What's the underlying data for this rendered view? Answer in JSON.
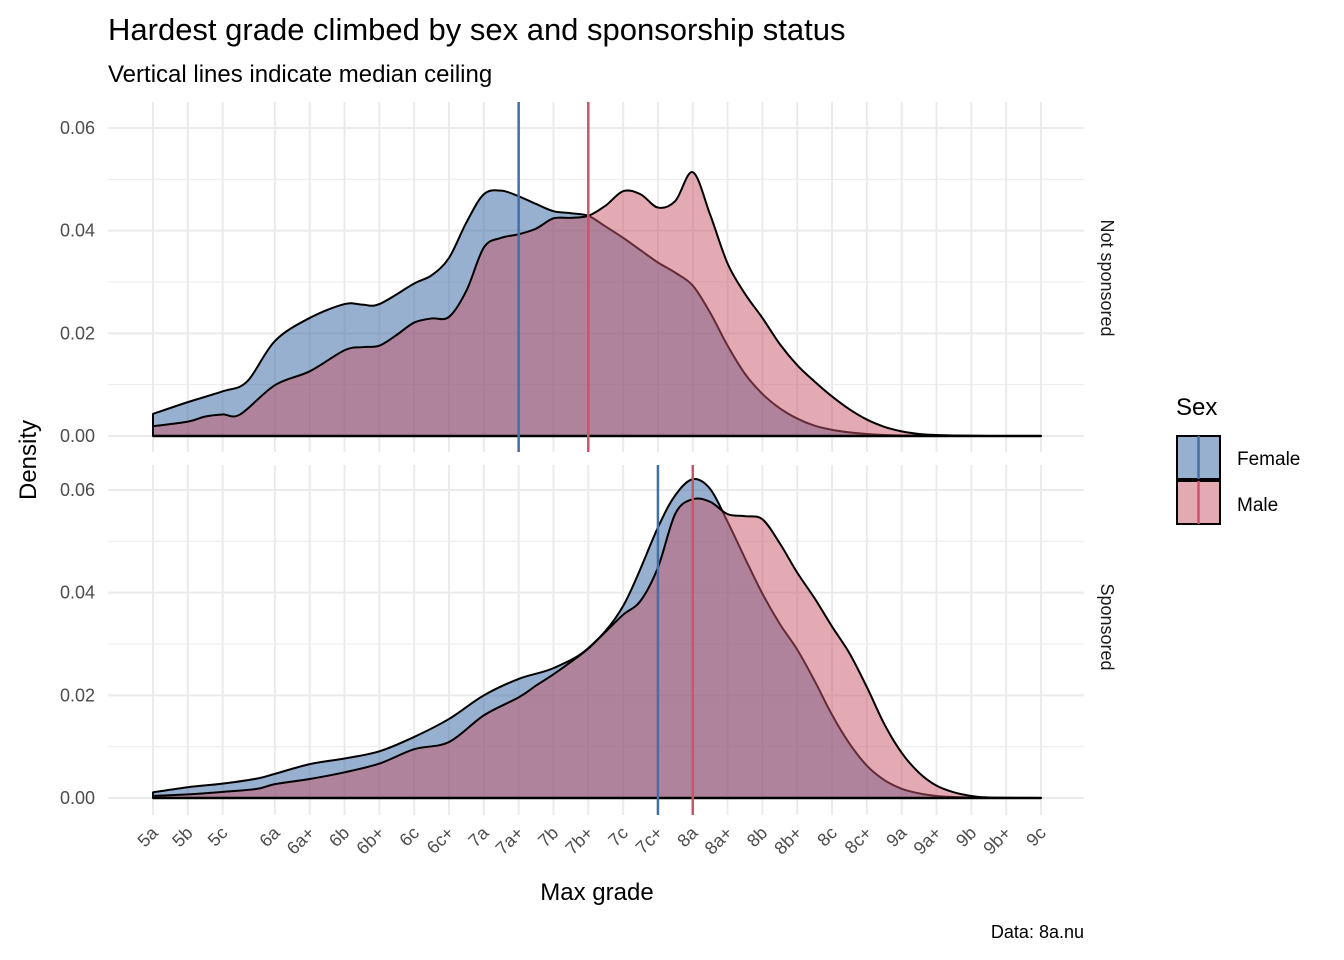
{
  "chart_data": {
    "type": "area",
    "title": "Hardest grade climbed by sex and sponsorship status",
    "subtitle": "Vertical lines indicate median ceiling",
    "xlabel": "Max grade",
    "ylabel": "Density",
    "caption": "Data: 8a.nu",
    "categories": [
      "5a",
      "5b",
      "5c",
      "6a",
      "6a+",
      "6b",
      "6b+",
      "6c",
      "6c+",
      "7a",
      "7a+",
      "7b",
      "7b+",
      "7c",
      "7c+",
      "8a",
      "8a+",
      "8b",
      "8b+",
      "8c",
      "8c+",
      "9a",
      "9a+",
      "9b",
      "9b+",
      "9c"
    ],
    "category_positions": [
      1,
      2,
      3,
      4.5,
      5.5,
      6.5,
      7.5,
      8.5,
      9.5,
      10.5,
      11.5,
      12.5,
      13.5,
      14.5,
      15.5,
      16.5,
      17.5,
      18.5,
      19.5,
      20.5,
      21.5,
      22.5,
      23.5,
      24.5,
      25.5,
      26.5
    ],
    "ylim": [
      0,
      0.065
    ],
    "yticks": [
      0,
      0.02,
      0.04,
      0.06
    ],
    "ytick_labels": [
      "0.00",
      "0.02",
      "0.04",
      "0.06"
    ],
    "grid": true,
    "legend": {
      "title": "Sex",
      "placement": "right",
      "entries": [
        {
          "name": "Female",
          "color": "#4470A8"
        },
        {
          "name": "Male",
          "color": "#C8566A"
        }
      ]
    },
    "panels": [
      {
        "label": "Not sponsored",
        "medians": {
          "Female": 11.5,
          "Male": 13.5
        },
        "series": [
          {
            "name": "Female",
            "x": [
              1,
              2,
              3,
              3.7,
              4.5,
              5.5,
              6.5,
              7,
              7.5,
              8.5,
              9,
              9.5,
              10,
              10.5,
              11,
              11.5,
              12,
              12.5,
              13,
              13.5,
              14,
              14.5,
              15,
              15.5,
              16,
              16.5,
              17,
              17.5,
              18,
              18.5,
              19,
              19.5,
              20,
              20.5,
              21,
              21.5,
              22,
              22.5,
              23,
              23.5,
              24,
              25,
              26.5
            ],
            "y": [
              0.0043,
              0.0066,
              0.0087,
              0.0106,
              0.0185,
              0.023,
              0.0257,
              0.0256,
              0.0257,
              0.0297,
              0.0313,
              0.0347,
              0.0416,
              0.0471,
              0.0478,
              0.0467,
              0.0452,
              0.0438,
              0.0434,
              0.0429,
              0.0408,
              0.0386,
              0.0362,
              0.0338,
              0.0318,
              0.0293,
              0.024,
              0.0176,
              0.0121,
              0.0082,
              0.0054,
              0.0034,
              0.002,
              0.0012,
              0.0007,
              0.0004,
              0.0002,
              0.0001,
              0.0001,
              0,
              0,
              0,
              0
            ]
          },
          {
            "name": "Male",
            "x": [
              1,
              2,
              2.5,
              3,
              3.5,
              4.5,
              5.5,
              6.5,
              7,
              7.5,
              8,
              8.5,
              9,
              9.5,
              10,
              10.5,
              11,
              11.5,
              12,
              12.5,
              13,
              13.5,
              14,
              14.5,
              15,
              15.5,
              16,
              16.5,
              17,
              17.5,
              18,
              18.5,
              19,
              19.5,
              20,
              20.5,
              21,
              21.5,
              22,
              22.5,
              23,
              23.5,
              24,
              25,
              26.5
            ],
            "y": [
              0.0019,
              0.0028,
              0.0038,
              0.0042,
              0.0042,
              0.0099,
              0.0126,
              0.0167,
              0.0173,
              0.0176,
              0.0197,
              0.0221,
              0.0229,
              0.0232,
              0.0283,
              0.0367,
              0.0386,
              0.0393,
              0.0404,
              0.0424,
              0.0425,
              0.0429,
              0.0449,
              0.0477,
              0.0471,
              0.0445,
              0.0458,
              0.0514,
              0.0431,
              0.0336,
              0.0277,
              0.023,
              0.0179,
              0.0138,
              0.0106,
              0.0077,
              0.0052,
              0.0032,
              0.0018,
              0.0009,
              0.0004,
              0.0002,
              0.0001,
              0,
              0
            ]
          }
        ]
      },
      {
        "label": "Sponsored",
        "medians": {
          "Female": 15.5,
          "Male": 16.5
        },
        "series": [
          {
            "name": "Female",
            "x": [
              1,
              2,
              3,
              4,
              4.5,
              5.5,
              6.5,
              7.5,
              8.5,
              9.5,
              10.5,
              11.5,
              12.5,
              13.5,
              14.5,
              15.5,
              16,
              16.5,
              17,
              17.5,
              18,
              18.5,
              19,
              19.5,
              20,
              20.5,
              21,
              21.5,
              22,
              22.5,
              23,
              23.5,
              24,
              24.5,
              25,
              26.5
            ],
            "y": [
              0.0011,
              0.0021,
              0.0028,
              0.0038,
              0.0047,
              0.0066,
              0.0077,
              0.0091,
              0.0119,
              0.0154,
              0.02,
              0.0232,
              0.0253,
              0.0292,
              0.0374,
              0.0527,
              0.059,
              0.0621,
              0.0602,
              0.0538,
              0.0467,
              0.0398,
              0.0339,
              0.0289,
              0.0228,
              0.0162,
              0.0106,
              0.0063,
              0.0035,
              0.0018,
              0.0009,
              0.0004,
              0.0002,
              0.0001,
              0,
              0
            ]
          },
          {
            "name": "Male",
            "x": [
              1,
              2,
              3,
              4,
              4.5,
              5.5,
              6.5,
              7.5,
              8.5,
              9.5,
              10.5,
              11.5,
              12,
              12.5,
              13,
              13.5,
              14,
              14.5,
              15,
              15.5,
              16,
              16.5,
              17,
              17.5,
              18,
              18.5,
              19,
              19.5,
              20,
              20.5,
              21,
              21.5,
              22,
              22.5,
              23,
              23.5,
              24,
              24.5,
              25,
              26.5
            ],
            "y": [
              0.0004,
              0.0007,
              0.0012,
              0.0018,
              0.0027,
              0.0037,
              0.005,
              0.0067,
              0.0095,
              0.0109,
              0.0161,
              0.0196,
              0.0219,
              0.0241,
              0.0265,
              0.0291,
              0.0324,
              0.0357,
              0.0384,
              0.0449,
              0.0554,
              0.0582,
              0.0577,
              0.0553,
              0.0549,
              0.0543,
              0.0496,
              0.0439,
              0.0389,
              0.0334,
              0.0282,
              0.0216,
              0.0144,
              0.0088,
              0.0049,
              0.0024,
              0.0011,
              0.0004,
              0.0001,
              0
            ]
          }
        ]
      }
    ]
  }
}
